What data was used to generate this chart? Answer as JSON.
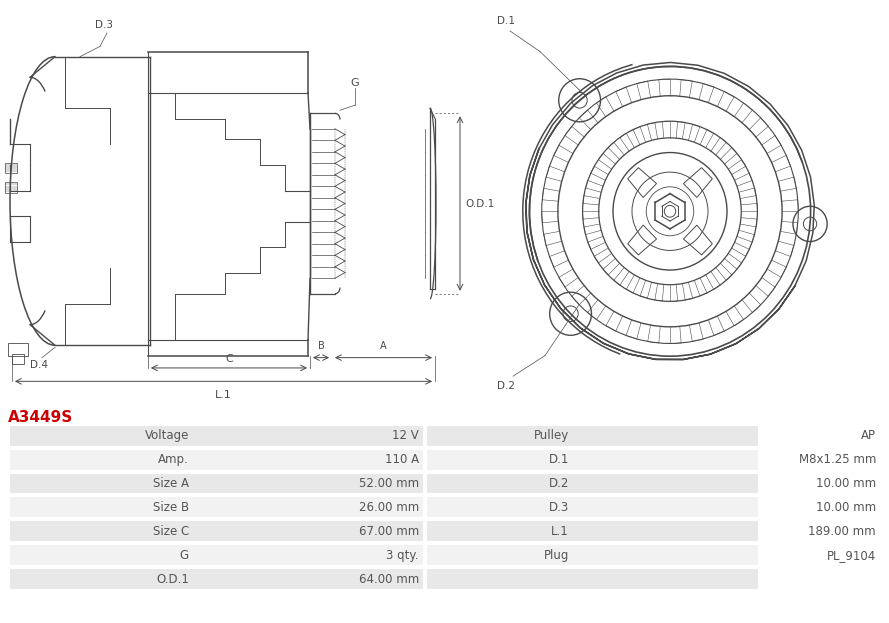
{
  "title": "A3449S",
  "title_color": "#cc0000",
  "bg_color": "#ffffff",
  "table_row_bg1": "#e8e8e8",
  "table_row_bg2": "#f2f2f2",
  "table_border_color": "#ffffff",
  "rows": [
    [
      "Voltage",
      "12 V",
      "Pulley",
      "AP"
    ],
    [
      "Amp.",
      "110 A",
      "D.1",
      "M8x1.25 mm"
    ],
    [
      "Size A",
      "52.00 mm",
      "D.2",
      "10.00 mm"
    ],
    [
      "Size B",
      "26.00 mm",
      "D.3",
      "10.00 mm"
    ],
    [
      "Size C",
      "67.00 mm",
      "L.1",
      "189.00 mm"
    ],
    [
      "G",
      "3 qty.",
      "Plug",
      "PL_9104"
    ],
    [
      "O.D.1",
      "64.00 mm",
      "",
      ""
    ]
  ],
  "line_color": "#4a4a4a",
  "label_color": "#4a4a4a",
  "font_size_table": 8.5,
  "font_size_title": 11
}
